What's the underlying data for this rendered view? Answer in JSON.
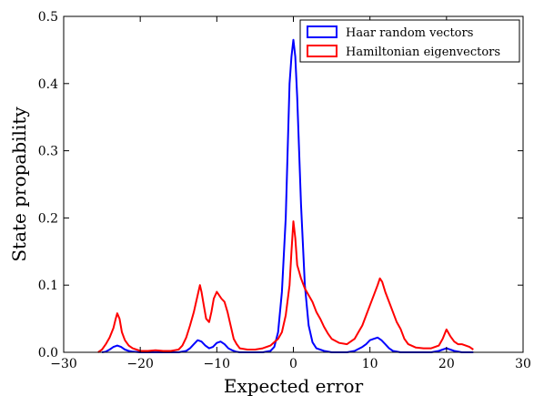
{
  "chart_data": {
    "type": "line",
    "title": "",
    "xlabel": "Expected error",
    "ylabel": "State propability",
    "xlim": [
      -30,
      30
    ],
    "ylim": [
      0,
      0.5
    ],
    "xticks": [
      -30,
      -20,
      -10,
      0,
      10,
      20,
      30
    ],
    "yticks": [
      0.0,
      0.1,
      0.2,
      0.3,
      0.4,
      0.5
    ],
    "xtick_labels": [
      "−30",
      "−20",
      "−10",
      "0",
      "10",
      "20",
      "30"
    ],
    "ytick_labels": [
      "0.0",
      "0.1",
      "0.2",
      "0.3",
      "0.4",
      "0.5"
    ],
    "grid": false,
    "legend_position": "top-right",
    "series": [
      {
        "name": "Haar random vectors",
        "color": "#0000ff",
        "x": [
          -25,
          -24.5,
          -24,
          -23.5,
          -23,
          -22.5,
          -22,
          -21.5,
          -21,
          -20,
          -19,
          -18,
          -17,
          -16,
          -15,
          -14,
          -13.5,
          -13,
          -12.5,
          -12,
          -11.5,
          -11,
          -10.5,
          -10,
          -9.5,
          -9,
          -8.5,
          -8,
          -7.5,
          -7,
          -6,
          -5,
          -4,
          -3,
          -2.5,
          -2,
          -1.5,
          -1,
          -0.75,
          -0.5,
          -0.25,
          0,
          0.25,
          0.5,
          0.75,
          1,
          1.5,
          2,
          2.5,
          3,
          4,
          5,
          6,
          7,
          8,
          9,
          9.5,
          10,
          10.5,
          11,
          11.5,
          12,
          12.5,
          13,
          14,
          15,
          16,
          17,
          18,
          19,
          19.5,
          20,
          20.5,
          21,
          22,
          23,
          23.5
        ],
        "values": [
          0,
          0.001,
          0.004,
          0.008,
          0.01,
          0.008,
          0.004,
          0.002,
          0.001,
          0,
          0,
          0,
          0,
          0,
          0,
          0.002,
          0.006,
          0.012,
          0.018,
          0.016,
          0.01,
          0.006,
          0.008,
          0.014,
          0.016,
          0.012,
          0.006,
          0.003,
          0.001,
          0,
          0,
          0,
          0,
          0.002,
          0.008,
          0.03,
          0.09,
          0.2,
          0.3,
          0.4,
          0.44,
          0.465,
          0.44,
          0.38,
          0.3,
          0.22,
          0.1,
          0.04,
          0.015,
          0.006,
          0.002,
          0,
          0,
          0,
          0.002,
          0.008,
          0.012,
          0.018,
          0.02,
          0.022,
          0.018,
          0.012,
          0.006,
          0.002,
          0,
          0,
          0,
          0,
          0,
          0.002,
          0.004,
          0.006,
          0.004,
          0.002,
          0,
          0,
          0
        ]
      },
      {
        "name": "Hamiltonian eigenvectors",
        "color": "#ff0000",
        "x": [
          -25.5,
          -25,
          -24.5,
          -24,
          -23.5,
          -23.2,
          -23,
          -22.7,
          -22.4,
          -22,
          -21.5,
          -21,
          -20.5,
          -20,
          -19,
          -18,
          -17,
          -16,
          -15,
          -14.5,
          -14,
          -13.5,
          -13,
          -12.7,
          -12.4,
          -12.2,
          -12,
          -11.7,
          -11.4,
          -11,
          -10.7,
          -10.4,
          -10,
          -9.7,
          -9.4,
          -9,
          -8.6,
          -8.2,
          -7.8,
          -7.4,
          -7,
          -6,
          -5,
          -4,
          -3,
          -2.5,
          -2,
          -1.5,
          -1,
          -0.5,
          -0.25,
          0,
          0.25,
          0.5,
          0.75,
          1,
          1.5,
          2,
          2.5,
          3,
          3.5,
          4,
          4.5,
          5,
          6,
          7,
          8,
          8.5,
          9,
          9.5,
          10,
          10.5,
          11,
          11.3,
          11.6,
          12,
          12.5,
          13,
          13.5,
          14,
          14.5,
          15,
          16,
          17,
          18,
          19,
          19.5,
          20,
          20.5,
          21,
          21.5,
          22,
          22.5,
          23,
          23.5
        ],
        "values": [
          0,
          0.004,
          0.012,
          0.022,
          0.036,
          0.05,
          0.058,
          0.05,
          0.03,
          0.018,
          0.01,
          0.006,
          0.004,
          0.002,
          0.002,
          0.003,
          0.002,
          0.002,
          0.004,
          0.01,
          0.022,
          0.04,
          0.06,
          0.075,
          0.09,
          0.1,
          0.09,
          0.07,
          0.05,
          0.045,
          0.06,
          0.08,
          0.09,
          0.085,
          0.08,
          0.075,
          0.06,
          0.04,
          0.02,
          0.012,
          0.006,
          0.004,
          0.004,
          0.006,
          0.01,
          0.015,
          0.02,
          0.03,
          0.055,
          0.1,
          0.15,
          0.195,
          0.17,
          0.13,
          0.12,
          0.11,
          0.095,
          0.085,
          0.075,
          0.06,
          0.05,
          0.038,
          0.028,
          0.02,
          0.014,
          0.012,
          0.02,
          0.03,
          0.04,
          0.055,
          0.07,
          0.085,
          0.1,
          0.11,
          0.105,
          0.09,
          0.075,
          0.06,
          0.045,
          0.035,
          0.02,
          0.012,
          0.007,
          0.006,
          0.006,
          0.01,
          0.02,
          0.034,
          0.024,
          0.016,
          0.012,
          0.012,
          0.01,
          0.008,
          0.004
        ]
      }
    ]
  }
}
